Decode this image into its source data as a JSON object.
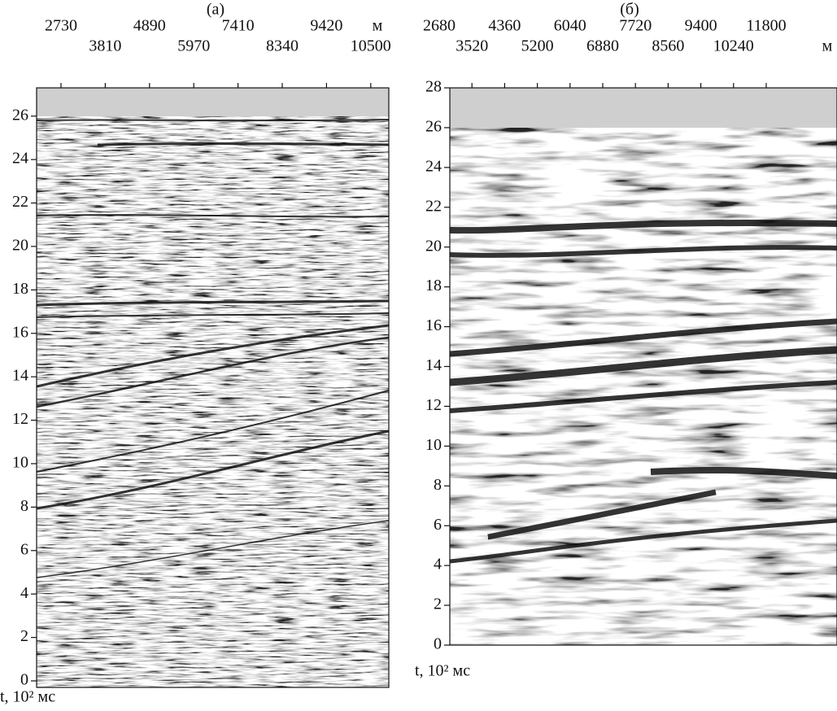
{
  "chart_data": [
    {
      "type": "seismic",
      "title": "(а)",
      "categories": [
        "2730",
        "3810",
        "4890",
        "5970",
        "7410",
        "8340",
        "9420",
        "10500"
      ],
      "x_unit": "м",
      "ylim": [
        -0.3,
        27.3
      ],
      "yticks": [
        0,
        2,
        4,
        6,
        8,
        10,
        12,
        14,
        16,
        18,
        20,
        22,
        24,
        26
      ],
      "y_label": "t, 10² мс"
    },
    {
      "type": "seismic",
      "title": "(б)",
      "categories": [
        "2680",
        "3520",
        "4360",
        "5200",
        "6040",
        "6880",
        "7720",
        "8560",
        "9400",
        "10240",
        "11800"
      ],
      "x_unit": "м",
      "ylim": [
        0,
        28
      ],
      "yticks": [
        0,
        2,
        4,
        6,
        8,
        10,
        12,
        14,
        16,
        18,
        20,
        22,
        24,
        26,
        28
      ],
      "y_label": "t, 10² мс"
    }
  ]
}
